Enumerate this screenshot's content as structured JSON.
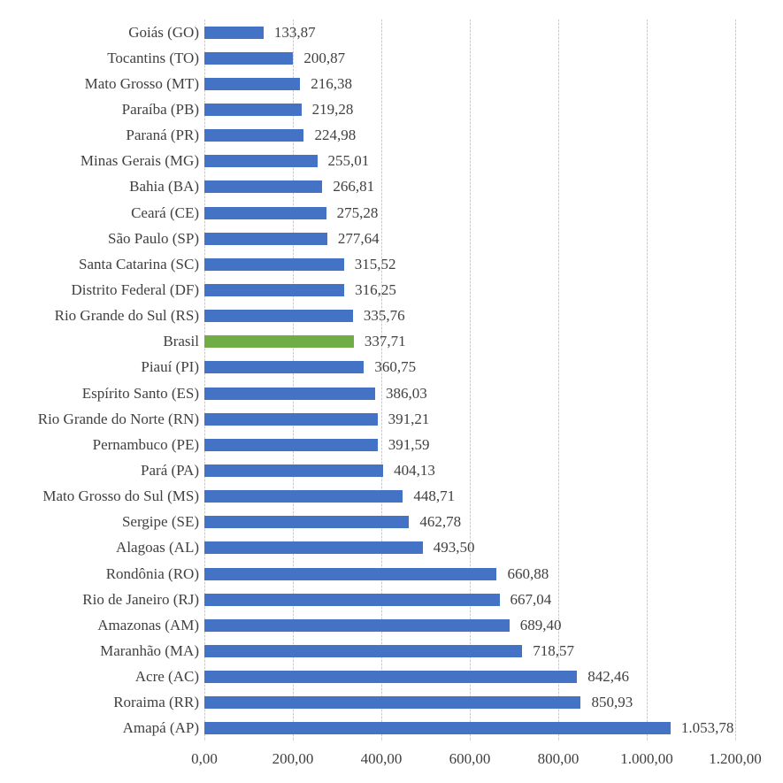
{
  "chart_data": {
    "type": "bar",
    "orientation": "horizontal",
    "title": "",
    "xlabel": "",
    "ylabel": "",
    "xlim": [
      0,
      1200
    ],
    "grid": true,
    "legend": false,
    "x_tick_values": [
      0,
      200,
      400,
      600,
      800,
      1000,
      1200
    ],
    "x_tick_labels": [
      "0,00",
      "200,00",
      "400,00",
      "600,00",
      "800,00",
      "1.000,00",
      "1.200,00"
    ],
    "bar_color": "#4472C4",
    "highlight_color": "#70AD47",
    "gridline_color": "#C9C9C9",
    "text_color": "#404040",
    "items": [
      {
        "label": "Goiás (GO)",
        "value": 133.87,
        "value_label": "133,87",
        "highlight": false
      },
      {
        "label": "Tocantins (TO)",
        "value": 200.87,
        "value_label": "200,87",
        "highlight": false
      },
      {
        "label": "Mato Grosso (MT)",
        "value": 216.38,
        "value_label": "216,38",
        "highlight": false
      },
      {
        "label": "Paraíba (PB)",
        "value": 219.28,
        "value_label": "219,28",
        "highlight": false
      },
      {
        "label": "Paraná (PR)",
        "value": 224.98,
        "value_label": "224,98",
        "highlight": false
      },
      {
        "label": "Minas Gerais (MG)",
        "value": 255.01,
        "value_label": "255,01",
        "highlight": false
      },
      {
        "label": "Bahia (BA)",
        "value": 266.81,
        "value_label": "266,81",
        "highlight": false
      },
      {
        "label": "Ceará (CE)",
        "value": 275.28,
        "value_label": "275,28",
        "highlight": false
      },
      {
        "label": "São Paulo (SP)",
        "value": 277.64,
        "value_label": "277,64",
        "highlight": false
      },
      {
        "label": "Santa Catarina (SC)",
        "value": 315.52,
        "value_label": "315,52",
        "highlight": false
      },
      {
        "label": "Distrito Federal (DF)",
        "value": 316.25,
        "value_label": "316,25",
        "highlight": false
      },
      {
        "label": "Rio Grande do Sul (RS)",
        "value": 335.76,
        "value_label": "335,76",
        "highlight": false
      },
      {
        "label": "Brasil",
        "value": 337.71,
        "value_label": "337,71",
        "highlight": true
      },
      {
        "label": "Piauí (PI)",
        "value": 360.75,
        "value_label": "360,75",
        "highlight": false
      },
      {
        "label": "Espírito Santo (ES)",
        "value": 386.03,
        "value_label": "386,03",
        "highlight": false
      },
      {
        "label": "Rio Grande do Norte (RN)",
        "value": 391.21,
        "value_label": "391,21",
        "highlight": false
      },
      {
        "label": "Pernambuco (PE)",
        "value": 391.59,
        "value_label": "391,59",
        "highlight": false
      },
      {
        "label": "Pará (PA)",
        "value": 404.13,
        "value_label": "404,13",
        "highlight": false
      },
      {
        "label": "Mato Grosso do Sul (MS)",
        "value": 448.71,
        "value_label": "448,71",
        "highlight": false
      },
      {
        "label": "Sergipe (SE)",
        "value": 462.78,
        "value_label": "462,78",
        "highlight": false
      },
      {
        "label": "Alagoas (AL)",
        "value": 493.5,
        "value_label": "493,50",
        "highlight": false
      },
      {
        "label": "Rondônia (RO)",
        "value": 660.88,
        "value_label": "660,88",
        "highlight": false
      },
      {
        "label": "Rio de Janeiro (RJ)",
        "value": 667.04,
        "value_label": "667,04",
        "highlight": false
      },
      {
        "label": "Amazonas (AM)",
        "value": 689.4,
        "value_label": "689,40",
        "highlight": false
      },
      {
        "label": "Maranhão (MA)",
        "value": 718.57,
        "value_label": "718,57",
        "highlight": false
      },
      {
        "label": "Acre (AC)",
        "value": 842.46,
        "value_label": "842,46",
        "highlight": false
      },
      {
        "label": "Roraima (RR)",
        "value": 850.93,
        "value_label": "850,93",
        "highlight": false
      },
      {
        "label": "Amapá (AP)",
        "value": 1053.78,
        "value_label": "1.053,78",
        "highlight": false
      }
    ]
  }
}
